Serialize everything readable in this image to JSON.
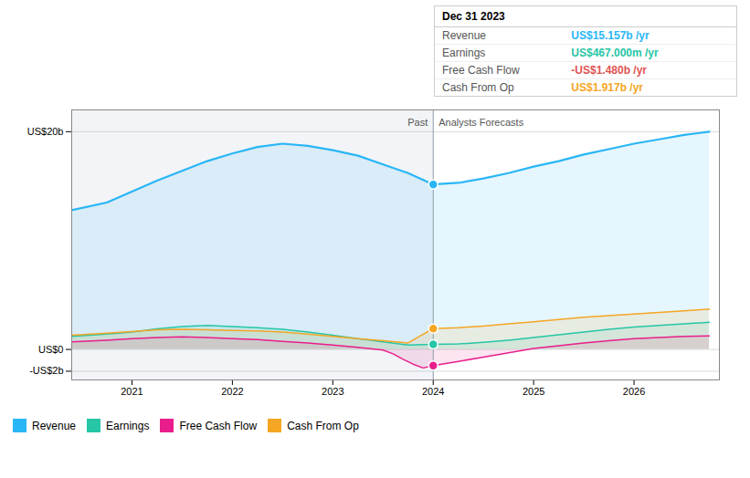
{
  "chart_data": {
    "type": "area",
    "series": [
      {
        "name": "Revenue",
        "color": "#29b6f6",
        "x": [
          2020.4,
          2020.75,
          2021.0,
          2021.25,
          2021.5,
          2021.75,
          2022.0,
          2022.25,
          2022.5,
          2022.75,
          2023.0,
          2023.25,
          2023.5,
          2023.75,
          2024.0,
          2024.25,
          2024.5,
          2024.75,
          2025.0,
          2025.25,
          2025.5,
          2025.75,
          2026.0,
          2026.25,
          2026.5,
          2026.75
        ],
        "values": [
          12.8,
          13.5,
          14.5,
          15.5,
          16.4,
          17.3,
          18.0,
          18.6,
          18.9,
          18.7,
          18.3,
          17.8,
          17.0,
          16.2,
          15.157,
          15.3,
          15.7,
          16.2,
          16.8,
          17.3,
          17.9,
          18.4,
          18.9,
          19.3,
          19.7,
          20.0
        ]
      },
      {
        "name": "Earnings",
        "color": "#26c6a6",
        "x": [
          2020.4,
          2020.75,
          2021.0,
          2021.25,
          2021.5,
          2021.75,
          2022.0,
          2022.25,
          2022.5,
          2022.75,
          2023.0,
          2023.25,
          2023.5,
          2023.75,
          2024.0,
          2024.25,
          2024.5,
          2024.75,
          2025.0,
          2025.25,
          2025.5,
          2025.75,
          2026.0,
          2026.25,
          2026.5,
          2026.75
        ],
        "values": [
          1.2,
          1.4,
          1.6,
          1.9,
          2.1,
          2.2,
          2.1,
          2.0,
          1.85,
          1.6,
          1.3,
          1.0,
          0.7,
          0.4,
          0.467,
          0.5,
          0.65,
          0.85,
          1.1,
          1.35,
          1.6,
          1.85,
          2.05,
          2.2,
          2.35,
          2.5
        ]
      },
      {
        "name": "Free Cash Flow",
        "color": "#e91e8c",
        "x": [
          2020.4,
          2020.75,
          2021.0,
          2021.25,
          2021.5,
          2021.75,
          2022.0,
          2022.25,
          2022.5,
          2022.75,
          2023.0,
          2023.25,
          2023.5,
          2023.6,
          2023.7,
          2023.8,
          2023.9,
          2024.0,
          2024.25,
          2024.5,
          2024.75,
          2025.0,
          2025.25,
          2025.5,
          2025.75,
          2026.0,
          2026.25,
          2026.5,
          2026.75
        ],
        "values": [
          0.7,
          0.85,
          1.0,
          1.1,
          1.15,
          1.1,
          1.0,
          0.9,
          0.75,
          0.6,
          0.4,
          0.2,
          -0.05,
          -0.4,
          -0.9,
          -1.35,
          -1.7,
          -1.48,
          -1.1,
          -0.7,
          -0.3,
          0.1,
          0.35,
          0.6,
          0.8,
          1.0,
          1.1,
          1.2,
          1.25
        ]
      },
      {
        "name": "Cash From Op",
        "color": "#f5a623",
        "x": [
          2020.4,
          2020.75,
          2021.0,
          2021.25,
          2021.5,
          2021.75,
          2022.0,
          2022.25,
          2022.5,
          2022.75,
          2023.0,
          2023.25,
          2023.5,
          2023.75,
          2024.0,
          2024.25,
          2024.5,
          2024.75,
          2025.0,
          2025.25,
          2025.5,
          2025.75,
          2026.0,
          2026.25,
          2026.5,
          2026.75
        ],
        "values": [
          1.3,
          1.5,
          1.65,
          1.8,
          1.85,
          1.8,
          1.75,
          1.7,
          1.6,
          1.4,
          1.2,
          1.0,
          0.8,
          0.6,
          1.917,
          2.0,
          2.15,
          2.35,
          2.55,
          2.75,
          2.95,
          3.1,
          3.25,
          3.4,
          3.55,
          3.7
        ]
      }
    ],
    "xlim": [
      2020.4,
      2026.85
    ],
    "xticks": [
      2021,
      2022,
      2023,
      2024,
      2025,
      2026
    ],
    "ylim": [
      -2.8,
      22.0
    ],
    "yticks": [
      {
        "value": -2,
        "label": "-US$2b"
      },
      {
        "value": 0,
        "label": "US$0"
      },
      {
        "value": 20,
        "label": "US$20b"
      }
    ],
    "grid": true,
    "legend": "bottom",
    "annotations": [
      {
        "text": "Past",
        "x": 2024.0,
        "position": "left"
      },
      {
        "text": "Analysts Forecasts",
        "x": 2024.0,
        "position": "right"
      }
    ],
    "tooltip": {
      "title": "Dec 31 2023",
      "x": 2024.0,
      "rows": [
        {
          "label": "Revenue",
          "value": 15.157,
          "value_label": "US$15.157b /yr",
          "color": "#29b6f6"
        },
        {
          "label": "Earnings",
          "value": 0.467,
          "value_label": "US$467.000m /yr",
          "color": "#26c6a6"
        },
        {
          "label": "Free Cash Flow",
          "value": -1.48,
          "value_label": "-US$1.480b /yr",
          "color": "#e05252"
        },
        {
          "label": "Cash From Op",
          "value": 1.917,
          "value_label": "US$1.917b /yr",
          "color": "#f5a623"
        }
      ]
    }
  }
}
